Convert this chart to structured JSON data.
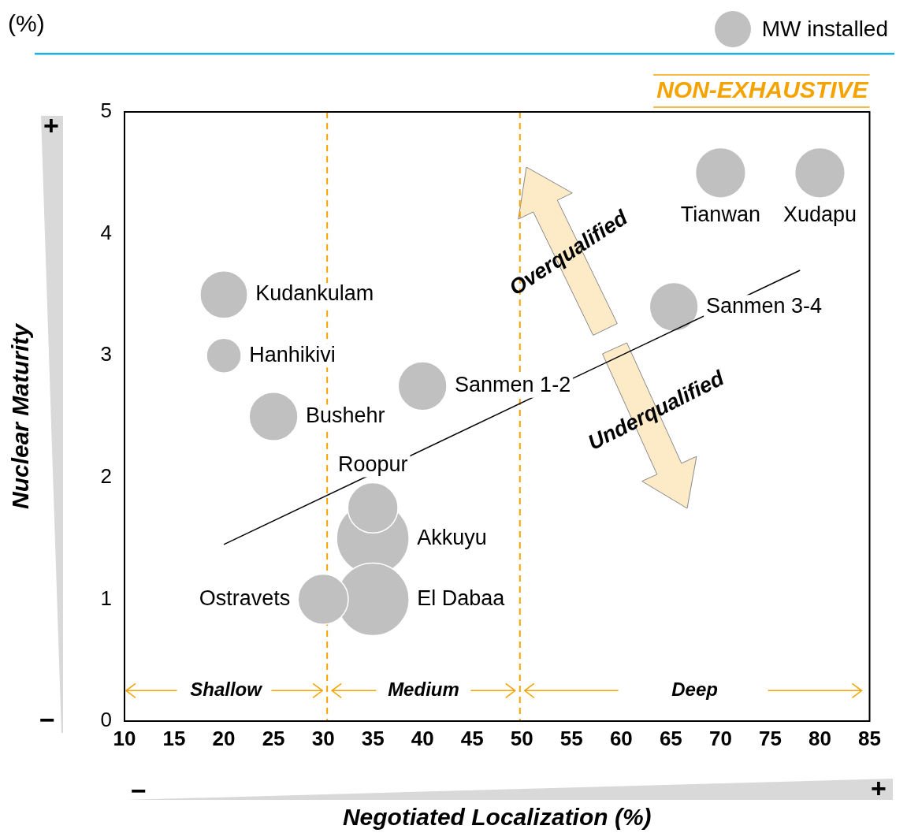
{
  "chart_data": {
    "type": "bubble",
    "subtitle": "(%)",
    "xlabel": "Negotiated Localization (%)",
    "ylabel": "Nuclear Maturity",
    "xlim": [
      10,
      85
    ],
    "xticks": [
      10,
      15,
      20,
      25,
      30,
      35,
      40,
      45,
      50,
      55,
      60,
      65,
      70,
      75,
      80,
      85
    ],
    "ylim": [
      0,
      5
    ],
    "yticks": [
      0,
      1,
      2,
      3,
      4,
      5
    ],
    "grid": false,
    "legend": "top right",
    "series": [
      {
        "name": "MW installed",
        "color": "#c0c0c0",
        "x": [
          20,
          20,
          25,
          40,
          35,
          35,
          35,
          30,
          70,
          80,
          65.3
        ],
        "values": [
          3.5,
          3.0,
          2.5,
          2.75,
          1.5,
          1.75,
          1.0,
          1.0,
          4.5,
          4.5,
          3.4
        ],
        "sizes": [
          0.43,
          0.23,
          0.45,
          0.45,
          1,
          0.48,
          1,
          0.48,
          0.48,
          0.48,
          0.45
        ]
      },
      {
        "type": "line",
        "color": "#000000",
        "x": [
          20,
          78
        ],
        "values": [
          1.45,
          3.7
        ]
      }
    ],
    "ref_lines": [
      {
        "axis": "x",
        "value": 30.4,
        "color": "#f5a300",
        "line_style": "dashed"
      },
      {
        "axis": "x",
        "value": 49.8,
        "color": "#f5a300",
        "line_style": "dashed"
      }
    ],
    "annotations": [
      {
        "text": "Kudankulam",
        "x": 20,
        "y": 3.5
      },
      {
        "text": "Hanhikivi",
        "x": 20,
        "y": 3.0
      },
      {
        "text": "Bushehr",
        "x": 25,
        "y": 2.5
      },
      {
        "text": "Sanmen 1-2",
        "x": 40,
        "y": 2.75
      },
      {
        "text": "Akkuyu",
        "x": 35,
        "y": 1.5
      },
      {
        "text": "Roopur",
        "x": 35,
        "y": 1.75
      },
      {
        "text": "El Dabaa",
        "x": 35,
        "y": 1.0
      },
      {
        "text": "Ostravets",
        "x": 30,
        "y": 1.0
      },
      {
        "text": "Tianwan",
        "x": 70,
        "y": 4.5
      },
      {
        "text": "Xudapu",
        "x": 80,
        "y": 4.5
      },
      {
        "text": "Sanmen 3-4",
        "x": 65.3,
        "y": 3.4
      },
      "Shallow",
      "Medium",
      "Deep",
      "NON-EXHAUSTIVE",
      "Overqualified",
      "Underqualified",
      "+",
      "−",
      "−",
      "+"
    ]
  }
}
